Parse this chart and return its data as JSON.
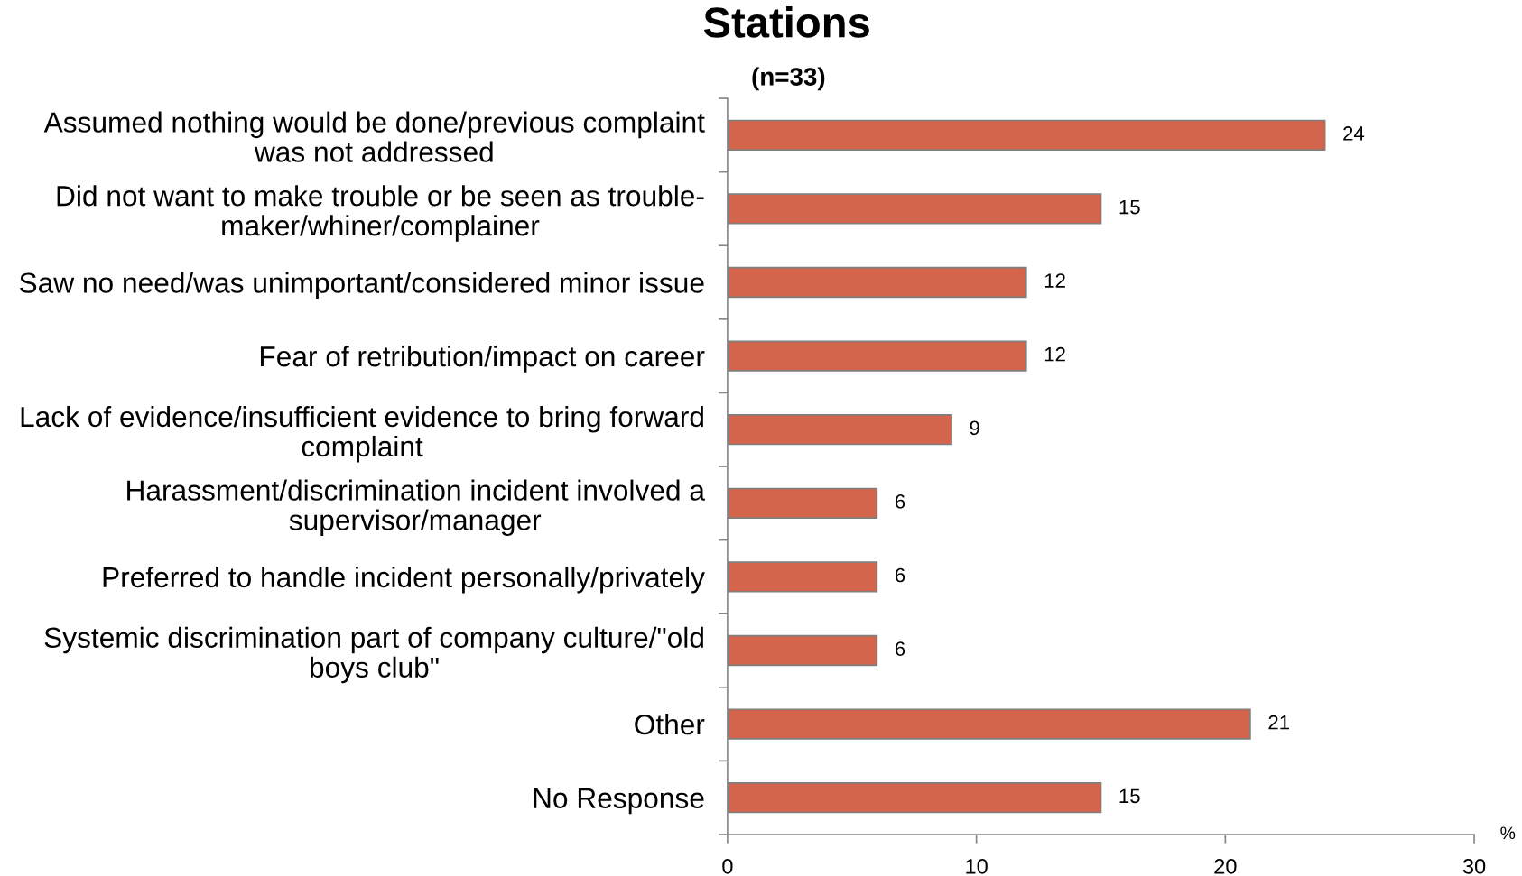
{
  "chart_data": {
    "type": "bar",
    "orientation": "horizontal",
    "title": "Stations",
    "subtitle": "(n=33)",
    "xlabel": "%",
    "categories": [
      "Assumed nothing would be done/previous complaint\nwas not addressed",
      "Did not want to make trouble or be seen as trouble-\nmaker/whiner/complainer",
      "Saw no need/was unimportant/considered minor issue",
      "Fear of retribution/impact on career",
      "Lack of evidence/insufficient evidence to bring forward\ncomplaint",
      "Harassment/discrimination incident involved a\nsupervisor/manager",
      "Preferred to handle incident personally/privately",
      "Systemic discrimination part of company culture/\"old\nboys club\"",
      "Other",
      "No Response"
    ],
    "values": [
      24,
      15,
      12,
      12,
      9,
      6,
      6,
      6,
      21,
      15
    ],
    "color": "#d2654b",
    "xlim": [
      0,
      30
    ],
    "xticks": [
      0,
      10,
      20,
      30
    ],
    "data_labels": true,
    "grid": false,
    "legend": false
  }
}
